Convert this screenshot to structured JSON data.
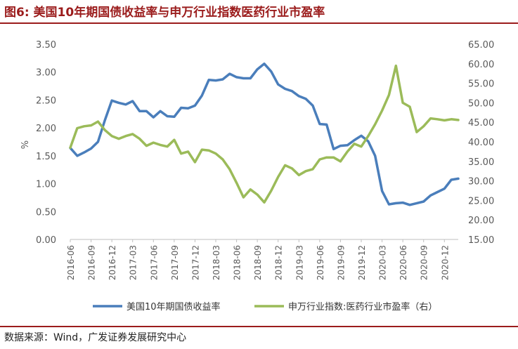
{
  "figure_title": "图6: 美国10年期国债收益率与申万行业指数医药行业市盈率",
  "source_note": "数据来源：Wind，广发证券发展研究中心",
  "colors": {
    "title": "#9b1c1c",
    "series_left": "#4a7ebb",
    "series_right": "#9bbb59",
    "axis_text": "#595959"
  },
  "chart_data": {
    "type": "line",
    "xlabel": "",
    "ylabel": "%",
    "ylabel_right": "",
    "ylim": [
      0,
      3.5
    ],
    "ylim_right": [
      15,
      65
    ],
    "yticks": [
      "0.00",
      "0.50",
      "1.00",
      "1.50",
      "2.00",
      "2.50",
      "3.00",
      "3.50"
    ],
    "yticks_right": [
      "15.00",
      "20.00",
      "25.00",
      "30.00",
      "35.00",
      "40.00",
      "45.00",
      "50.00",
      "55.00",
      "60.00",
      "65.00"
    ],
    "grid": false,
    "legend": "bottom",
    "x_tick_labels": [
      "2016-06",
      "2016-09",
      "2016-12",
      "2017-03",
      "2017-06",
      "2017-09",
      "2017-12",
      "2018-03",
      "2018-06",
      "2018-09",
      "2018-12",
      "2019-03",
      "2019-06",
      "2019-09",
      "2019-12",
      "2020-03",
      "2020-06",
      "2020-09",
      "2020-12"
    ],
    "x": [
      "2016-06",
      "2016-07",
      "2016-08",
      "2016-09",
      "2016-10",
      "2016-11",
      "2016-12",
      "2017-01",
      "2017-02",
      "2017-03",
      "2017-04",
      "2017-05",
      "2017-06",
      "2017-07",
      "2017-08",
      "2017-09",
      "2017-10",
      "2017-11",
      "2017-12",
      "2018-01",
      "2018-02",
      "2018-03",
      "2018-04",
      "2018-05",
      "2018-06",
      "2018-07",
      "2018-08",
      "2018-09",
      "2018-10",
      "2018-11",
      "2018-12",
      "2019-01",
      "2019-02",
      "2019-03",
      "2019-04",
      "2019-05",
      "2019-06",
      "2019-07",
      "2019-08",
      "2019-09",
      "2019-10",
      "2019-11",
      "2019-12",
      "2020-01",
      "2020-02",
      "2020-03",
      "2020-04",
      "2020-05",
      "2020-06",
      "2020-07",
      "2020-08",
      "2020-09",
      "2020-10",
      "2020-11",
      "2020-12",
      "2021-01",
      "2021-02"
    ],
    "series": [
      {
        "name": "美国10年期国债收益率",
        "axis": "left",
        "color": "#4a7ebb",
        "values": [
          1.64,
          1.5,
          1.56,
          1.63,
          1.75,
          2.14,
          2.49,
          2.45,
          2.42,
          2.48,
          2.3,
          2.3,
          2.19,
          2.3,
          2.21,
          2.2,
          2.36,
          2.35,
          2.4,
          2.58,
          2.86,
          2.85,
          2.87,
          2.97,
          2.91,
          2.89,
          2.89,
          3.05,
          3.15,
          3.01,
          2.78,
          2.7,
          2.66,
          2.57,
          2.52,
          2.4,
          2.07,
          2.06,
          1.62,
          1.68,
          1.69,
          1.78,
          1.86,
          1.76,
          1.5,
          0.87,
          0.63,
          0.65,
          0.66,
          0.62,
          0.65,
          0.68,
          0.79,
          0.85,
          0.91,
          1.07,
          1.09
        ]
      },
      {
        "name": "申万行业指数:医药行业市盈率（右）",
        "axis": "right",
        "color": "#9bbb59",
        "values": [
          38.5,
          43.5,
          44.0,
          44.2,
          45.2,
          43.0,
          41.5,
          40.8,
          41.5,
          42.0,
          40.8,
          39.0,
          39.8,
          39.2,
          38.8,
          40.5,
          37.0,
          37.5,
          34.8,
          38.0,
          37.8,
          37.0,
          35.5,
          33.0,
          29.5,
          25.8,
          27.8,
          26.5,
          24.5,
          27.5,
          31.0,
          34.0,
          33.2,
          31.5,
          32.5,
          33.0,
          35.5,
          36.0,
          36.0,
          35.0,
          37.5,
          39.5,
          38.8,
          41.5,
          44.5,
          48.0,
          52.0,
          59.5,
          50.0,
          49.0,
          42.5,
          44.0,
          46.0,
          45.8,
          45.5,
          45.8,
          45.6
        ]
      }
    ]
  }
}
